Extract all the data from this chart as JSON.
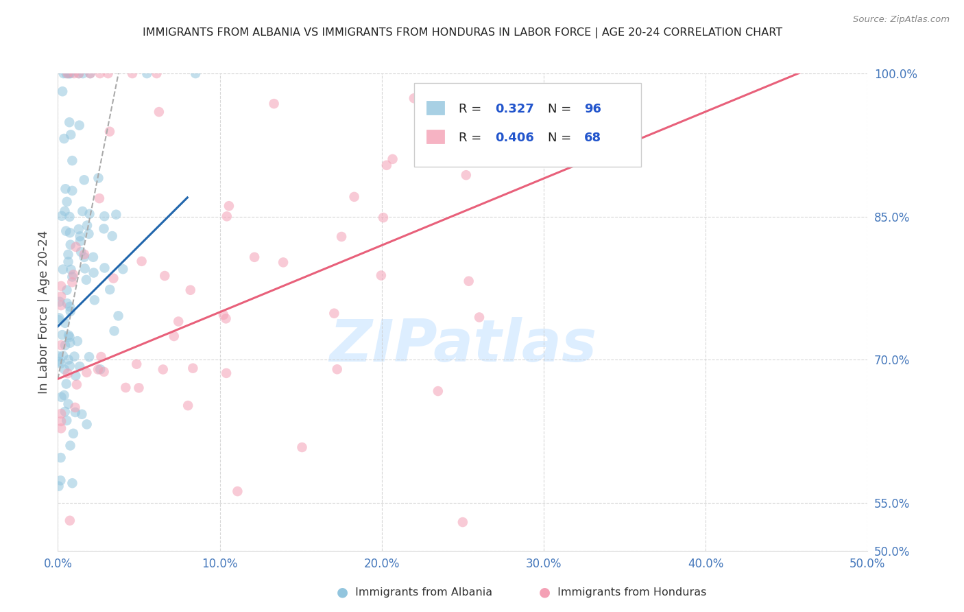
{
  "title": "IMMIGRANTS FROM ALBANIA VS IMMIGRANTS FROM HONDURAS IN LABOR FORCE | AGE 20-24 CORRELATION CHART",
  "source": "Source: ZipAtlas.com",
  "ylabel": "In Labor Force | Age 20-24",
  "xlim": [
    0.0,
    50.0
  ],
  "ylim": [
    50.0,
    100.0
  ],
  "yticks": [
    50.0,
    55.0,
    70.0,
    85.0,
    100.0
  ],
  "xticks": [
    0.0,
    10.0,
    20.0,
    30.0,
    40.0,
    50.0
  ],
  "albania_R": 0.327,
  "albania_N": 96,
  "honduras_R": 0.406,
  "honduras_N": 68,
  "albania_color": "#92c5de",
  "honduras_color": "#f4a0b5",
  "albania_line_color": "#2166ac",
  "honduras_line_color": "#e8607a",
  "albania_legend_color": "#92c5de",
  "honduras_legend_color": "#f4a0b5",
  "watermark_text": "ZIPatlas",
  "watermark_color": "#ddeeff",
  "background_color": "#ffffff",
  "grid_color": "#cccccc",
  "title_color": "#222222",
  "axis_label_color": "#444444",
  "tick_label_color": "#4477bb",
  "source_color": "#888888",
  "legend_text_color": "#222222",
  "legend_value_color": "#2255cc",
  "legend_border_color": "#cccccc",
  "bottom_legend_text_color": "#333333"
}
